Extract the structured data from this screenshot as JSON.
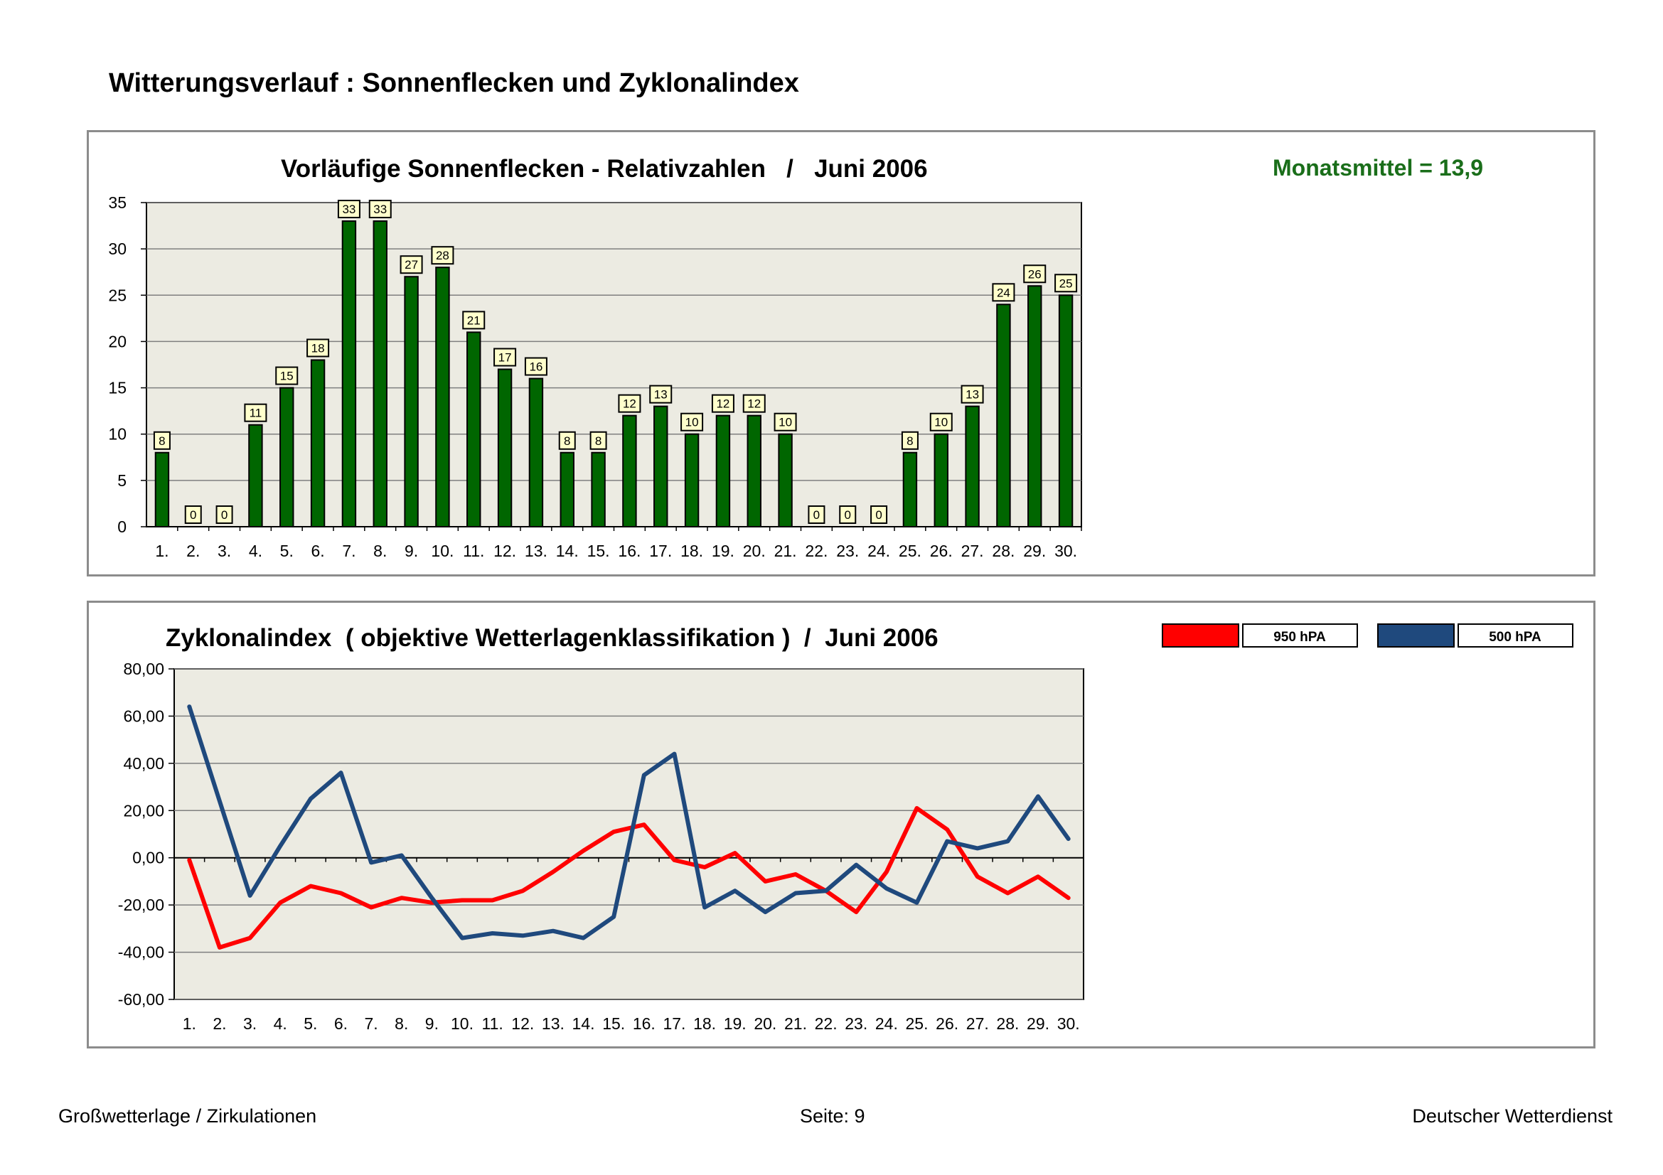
{
  "page": {
    "title": "Witterungsverlauf : Sonnenflecken und Zyklonalindex",
    "footer_left": "Großwetterlage / Zirkulationen",
    "footer_center": "Seite: 9",
    "footer_right": "Deutscher Wetterdienst"
  },
  "colors": {
    "bar_fill": "#006600",
    "mean_text": "#1a6e1a",
    "plot_bg": "#ecebe2",
    "label_bg": "#ffffcc",
    "line_950": "#ff0000",
    "line_500": "#1f497d"
  },
  "chart_data": [
    {
      "type": "bar",
      "title": "Vorläufige Sonnenflecken - Relativzahlen   /   Juni 2006",
      "annotation": "Monatsmittel = 13,9",
      "categories": [
        "1.",
        "2.",
        "3.",
        "4.",
        "5.",
        "6.",
        "7.",
        "8.",
        "9.",
        "10.",
        "11.",
        "12.",
        "13.",
        "14.",
        "15.",
        "16.",
        "17.",
        "18.",
        "19.",
        "20.",
        "21.",
        "22.",
        "23.",
        "24.",
        "25.",
        "26.",
        "27.",
        "28.",
        "29.",
        "30."
      ],
      "values": [
        8,
        0,
        0,
        11,
        15,
        18,
        33,
        33,
        27,
        28,
        21,
        17,
        16,
        8,
        8,
        12,
        13,
        10,
        12,
        12,
        10,
        0,
        0,
        0,
        8,
        10,
        13,
        24,
        26,
        25
      ],
      "ylim": [
        0,
        35
      ],
      "yticks": [
        "0",
        "5",
        "10",
        "15",
        "20",
        "25",
        "30",
        "35"
      ],
      "grid": true,
      "xlabel": "",
      "ylabel": ""
    },
    {
      "type": "line",
      "title": "Zyklonalindex  ( objektive Wetterlagenklassifikation )  /  Juni 2006",
      "categories": [
        "1.",
        "2.",
        "3.",
        "4.",
        "5.",
        "6.",
        "7.",
        "8.",
        "9.",
        "10.",
        "11.",
        "12.",
        "13.",
        "14.",
        "15.",
        "16.",
        "17.",
        "18.",
        "19.",
        "20.",
        "21.",
        "22.",
        "23.",
        "24.",
        "25.",
        "26.",
        "27.",
        "28.",
        "29.",
        "30."
      ],
      "series": [
        {
          "name": "950 hPA",
          "values": [
            -1,
            -38,
            -34,
            -19,
            -12,
            -15,
            -21,
            -17,
            -19,
            -18,
            -18,
            -14,
            -6,
            3,
            11,
            14,
            -1,
            -4,
            2,
            -10,
            -7,
            -14,
            -23,
            -6,
            21,
            12,
            -8,
            -15,
            -8,
            -17
          ]
        },
        {
          "name": "500 hPA",
          "values": [
            64,
            24,
            -16,
            5,
            25,
            36,
            -2,
            1,
            -17,
            -34,
            -32,
            -33,
            -31,
            -34,
            -25,
            35,
            44,
            -21,
            -14,
            -23,
            -15,
            -14,
            -3,
            -13,
            -19,
            7,
            4,
            7,
            26,
            8
          ]
        }
      ],
      "ylim": [
        -60,
        80
      ],
      "yticks": [
        "-60,00",
        "-40,00",
        "-20,00",
        "0,00",
        "20,00",
        "40,00",
        "60,00",
        "80,00"
      ],
      "legend": "top-right",
      "grid": true
    }
  ]
}
